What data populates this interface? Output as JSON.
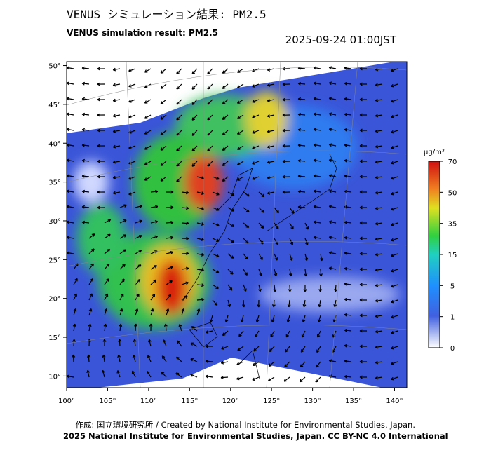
{
  "header": {
    "title_jp": "VENUS シミュレーション結果: PM2.5",
    "title_en": "VENUS simulation result: PM2.5",
    "timestamp": "2025-09-24 01:00JST"
  },
  "map": {
    "xlim": [
      100,
      141.5
    ],
    "ylim": [
      8.5,
      50.5
    ],
    "xticks": [
      {
        "value": 100,
        "label": "100°"
      },
      {
        "value": 105,
        "label": "105°"
      },
      {
        "value": 110,
        "label": "110°"
      },
      {
        "value": 115,
        "label": "115°"
      },
      {
        "value": 120,
        "label": "120°"
      },
      {
        "value": 125,
        "label": "125°"
      },
      {
        "value": 130,
        "label": "130°"
      },
      {
        "value": 135,
        "label": "135°"
      },
      {
        "value": 140,
        "label": "140°"
      }
    ],
    "yticks": [
      {
        "value": 10,
        "label": "10°"
      },
      {
        "value": 15,
        "label": "15°"
      },
      {
        "value": 20,
        "label": "20°"
      },
      {
        "value": 25,
        "label": "25°"
      },
      {
        "value": 30,
        "label": "30°"
      },
      {
        "value": 35,
        "label": "35°"
      },
      {
        "value": 40,
        "label": "40°"
      },
      {
        "value": 45,
        "label": "45°"
      },
      {
        "value": 50,
        "label": "50°"
      }
    ]
  },
  "colorbar": {
    "unit": "μg/m³",
    "ticks": [
      0,
      1,
      5,
      15,
      35,
      50,
      70
    ]
  },
  "footer": {
    "credit": "作成: 国立環境研究所 / Created by National Institute for Environmental Studies, Japan.",
    "copyright": "2025 National Institute for Environmental Studies, Japan. CC BY-NC 4.0 International"
  }
}
